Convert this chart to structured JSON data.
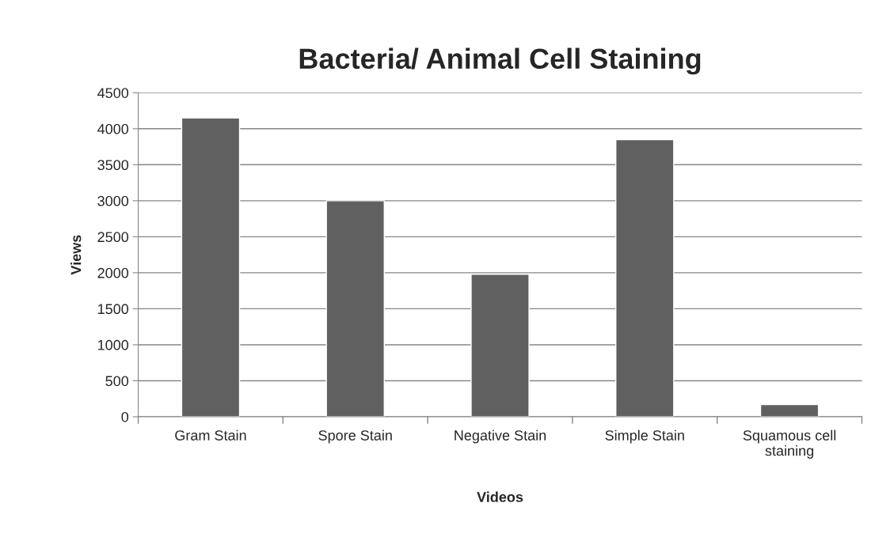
{
  "chart_data": {
    "type": "bar",
    "title": "Bacteria/ Animal Cell Staining",
    "xlabel": "Videos",
    "ylabel": "Views",
    "categories": [
      "Gram Stain",
      "Spore Stain",
      "Negative Stain",
      "Simple Stain",
      "Squamous cell\nstaining"
    ],
    "values": [
      4150,
      3000,
      1980,
      3850,
      170
    ],
    "color": "#606060",
    "ylim": [
      0,
      4500
    ],
    "yticks": [
      0,
      500,
      1000,
      1500,
      2000,
      2500,
      3000,
      3500,
      4000,
      4500
    ],
    "grid": "y",
    "legend": false
  }
}
